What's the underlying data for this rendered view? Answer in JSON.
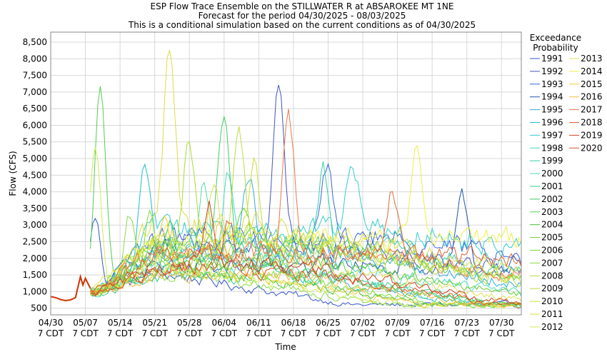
{
  "chart_data": {
    "type": "line",
    "title": "ESP Flow Trace Ensemble on the STILLWATER R at ABSAROKEE MT 1NE",
    "subtitle": "Forecast for the period 04/30/2025 - 08/03/2025",
    "subtitle2": "This is a conditional simulation based on the current conditions as of 04/30/2025",
    "xlabel": "Time",
    "ylabel": "Flow (CFS)",
    "ylim": [
      300,
      8800
    ],
    "yticks": [
      "500",
      "1,000",
      "1,500",
      "2,000",
      "2,500",
      "3,000",
      "3,500",
      "4,000",
      "4,500",
      "5,000",
      "5,500",
      "6,000",
      "6,500",
      "7,000",
      "7,500",
      "8,000",
      "8,500"
    ],
    "ytick_values": [
      500,
      1000,
      1500,
      2000,
      2500,
      3000,
      3500,
      4000,
      4500,
      5000,
      5500,
      6000,
      6500,
      7000,
      7500,
      8000,
      8500
    ],
    "xlim": [
      "2025-04-30",
      "2025-08-03"
    ],
    "xticks": [
      {
        "date": "2025-04-30",
        "line1": "04/30",
        "line2": "7 CDT"
      },
      {
        "date": "2025-05-07",
        "line1": "05/07",
        "line2": "7 CDT"
      },
      {
        "date": "2025-05-14",
        "line1": "05/14",
        "line2": "7 CDT"
      },
      {
        "date": "2025-05-21",
        "line1": "05/21",
        "line2": "7 CDT"
      },
      {
        "date": "2025-05-28",
        "line1": "05/28",
        "line2": "7 CDT"
      },
      {
        "date": "2025-06-04",
        "line1": "06/04",
        "line2": "7 CDT"
      },
      {
        "date": "2025-06-11",
        "line1": "06/11",
        "line2": "7 CDT"
      },
      {
        "date": "2025-06-18",
        "line1": "06/18",
        "line2": "7 CDT"
      },
      {
        "date": "2025-06-25",
        "line1": "06/25",
        "line2": "7 CDT"
      },
      {
        "date": "2025-07-02",
        "line1": "07/02",
        "line2": "7 CDT"
      },
      {
        "date": "2025-07-09",
        "line1": "07/09",
        "line2": "7 CDT"
      },
      {
        "date": "2025-07-16",
        "line1": "07/16",
        "line2": "7 CDT"
      },
      {
        "date": "2025-07-23",
        "line1": "07/23",
        "line2": "7 CDT"
      },
      {
        "date": "2025-07-30",
        "line1": "07/30",
        "line2": "7 CDT"
      }
    ],
    "grid": true,
    "legend_title": [
      "Exceedance",
      "Probability"
    ],
    "legend_position": "right",
    "observed": {
      "color": "#cc3300",
      "points": [
        [
          "2025-04-30",
          850
        ],
        [
          "2025-05-01",
          820
        ],
        [
          "2025-05-02",
          760
        ],
        [
          "2025-05-03",
          730
        ],
        [
          "2025-05-04",
          750
        ],
        [
          "2025-05-05",
          820
        ],
        [
          "2025-05-06",
          1450
        ],
        [
          "2025-05-06T12",
          1200
        ],
        [
          "2025-05-07",
          1400
        ],
        [
          "2025-05-07T12",
          1250
        ],
        [
          "2025-05-08",
          1100
        ]
      ]
    },
    "series": [
      {
        "name": "1991",
        "color": "#3355cc",
        "peak": 3200,
        "peak_date": "2025-05-09",
        "base": 1500
      },
      {
        "name": "1992",
        "color": "#4455bb",
        "peak": 7600,
        "peak_date": "2025-06-15",
        "base": 2400
      },
      {
        "name": "1993",
        "color": "#3366dd",
        "peak": 4700,
        "peak_date": "2025-06-25",
        "base": 2600
      },
      {
        "name": "1994",
        "color": "#2255aa",
        "peak": 4000,
        "peak_date": "2025-07-22",
        "base": 1800
      },
      {
        "name": "1995",
        "color": "#33aadd",
        "peak": 4500,
        "peak_date": "2025-06-09",
        "base": 2200
      },
      {
        "name": "1996",
        "color": "#22bbcc",
        "peak": 5100,
        "peak_date": "2025-05-19",
        "base": 1900
      },
      {
        "name": "1997",
        "color": "#33cccc",
        "peak": 4900,
        "peak_date": "2025-06-30",
        "base": 2800
      },
      {
        "name": "1998",
        "color": "#44ddbb",
        "peak": 4600,
        "peak_date": "2025-06-05",
        "base": 2000
      },
      {
        "name": "1999",
        "color": "#33ccaa",
        "peak": 4600,
        "peak_date": "2025-06-24",
        "base": 2300
      },
      {
        "name": "2000",
        "color": "#55ddaa",
        "peak": 4300,
        "peak_date": "2025-05-31",
        "base": 1700
      },
      {
        "name": "2001",
        "color": "#33cc88",
        "peak": 2600,
        "peak_date": "2025-06-12",
        "base": 1400
      },
      {
        "name": "2002",
        "color": "#44cc66",
        "peak": 6300,
        "peak_date": "2025-06-04",
        "base": 2500
      },
      {
        "name": "2003",
        "color": "#55cc55",
        "peak": 7100,
        "peak_date": "2025-05-10",
        "base": 2200
      },
      {
        "name": "2004",
        "color": "#44bb33",
        "peak": 3000,
        "peak_date": "2025-05-24",
        "base": 1500
      },
      {
        "name": "2005",
        "color": "#66cc33",
        "peak": 3700,
        "peak_date": "2025-06-08",
        "base": 1900
      },
      {
        "name": "2006",
        "color": "#77dd33",
        "peak": 3200,
        "peak_date": "2025-05-20",
        "base": 1700
      },
      {
        "name": "2007",
        "color": "#88dd44",
        "peak": 3300,
        "peak_date": "2025-05-16",
        "base": 1500
      },
      {
        "name": "2008",
        "color": "#aadd33",
        "peak": 5500,
        "peak_date": "2025-05-28",
        "base": 2600
      },
      {
        "name": "2009",
        "color": "#bbdd44",
        "peak": 5900,
        "peak_date": "2025-06-07",
        "base": 2400
      },
      {
        "name": "2010",
        "color": "#ccdd33",
        "peak": 4800,
        "peak_date": "2025-06-10",
        "base": 2300
      },
      {
        "name": "2011",
        "color": "#dddd44",
        "peak": 8500,
        "peak_date": "2025-05-24",
        "base": 3000
      },
      {
        "name": "2012",
        "color": "#ccee55",
        "peak": 5500,
        "peak_date": "2025-05-09",
        "base": 1800
      },
      {
        "name": "2013",
        "color": "#dddd55",
        "peak": 4300,
        "peak_date": "2025-06-02",
        "base": 1900
      },
      {
        "name": "2014",
        "color": "#eeee44",
        "peak": 5200,
        "peak_date": "2025-07-13",
        "base": 2600
      },
      {
        "name": "2015",
        "color": "#eecc33",
        "peak": 3400,
        "peak_date": "2025-05-23",
        "base": 1500
      },
      {
        "name": "2016",
        "color": "#eebb44",
        "peak": 3000,
        "peak_date": "2025-06-03",
        "base": 1500
      },
      {
        "name": "2017",
        "color": "#ee7744",
        "peak": 6500,
        "peak_date": "2025-06-17",
        "base": 2200
      },
      {
        "name": "2018",
        "color": "#dd6633",
        "peak": 4000,
        "peak_date": "2025-07-08",
        "base": 2100
      },
      {
        "name": "2019",
        "color": "#cc4422",
        "peak": 3600,
        "peak_date": "2025-06-01",
        "base": 1800
      },
      {
        "name": "2020",
        "color": "#dd5522",
        "peak": 3000,
        "peak_date": "2025-06-05",
        "base": 1600
      }
    ]
  }
}
